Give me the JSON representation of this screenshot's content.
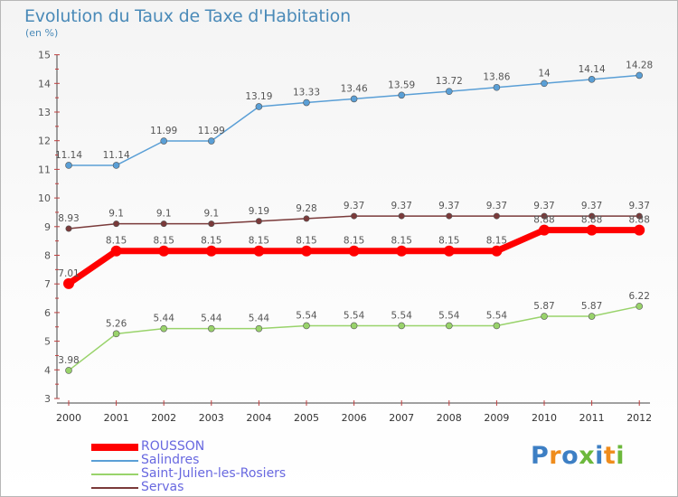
{
  "title": "Evolution du Taux de Taxe d'Habitation",
  "subtitle": "(en %)",
  "logo": {
    "text": "Proxiti",
    "letter_colors": [
      "#3d7fc4",
      "#ef8c1c",
      "#3d7fc4",
      "#6cb83c",
      "#3d7fc4",
      "#ef8c1c",
      "#6cb83c"
    ]
  },
  "chart_data": {
    "type": "line",
    "x": [
      "2000",
      "2001",
      "2002",
      "2003",
      "2004",
      "2005",
      "2006",
      "2007",
      "2008",
      "2009",
      "2010",
      "2011",
      "2012"
    ],
    "ylim": [
      3,
      15
    ],
    "yticks": [
      "3",
      "4",
      "5",
      "6",
      "7",
      "8",
      "9",
      "10",
      "11",
      "12",
      "13",
      "14",
      "15"
    ],
    "grid": false,
    "legend_position": "bottom-left",
    "series": [
      {
        "name": "Salindres",
        "color": "#5a9fd6",
        "values": [
          11.14,
          11.14,
          11.99,
          11.99,
          13.19,
          13.33,
          13.46,
          13.59,
          13.72,
          13.86,
          14,
          14.14,
          14.28
        ],
        "labels": [
          "11.14",
          "11.14",
          "11.99",
          "11.99",
          "13.19",
          "13.33",
          "13.46",
          "13.59",
          "13.72",
          "13.86",
          "14",
          "14.14",
          "14.28"
        ]
      },
      {
        "name": "Servas",
        "color": "#7a3a3a",
        "values": [
          8.93,
          9.1,
          9.1,
          9.1,
          9.19,
          9.28,
          9.37,
          9.37,
          9.37,
          9.37,
          9.37,
          9.37,
          9.37
        ],
        "labels": [
          "8.93",
          "9.1",
          "9.1",
          "9.1",
          "9.19",
          "9.28",
          "9.37",
          "9.37",
          "9.37",
          "9.37",
          "9.37",
          "9.37",
          "9.37"
        ]
      },
      {
        "name": "ROUSSON",
        "color": "#ff0000",
        "values": [
          7.01,
          8.15,
          8.15,
          8.15,
          8.15,
          8.15,
          8.15,
          8.15,
          8.15,
          8.15,
          8.88,
          8.88,
          8.88
        ],
        "labels": [
          "7.01",
          "8.15",
          "8.15",
          "8.15",
          "8.15",
          "8.15",
          "8.15",
          "8.15",
          "8.15",
          "8.15",
          "8.88",
          "8.88",
          "8.88"
        ]
      },
      {
        "name": "Saint-Julien-les-Rosiers",
        "color": "#99d36b",
        "values": [
          3.98,
          5.26,
          5.44,
          5.44,
          5.44,
          5.54,
          5.54,
          5.54,
          5.54,
          5.54,
          5.87,
          5.87,
          6.22
        ],
        "labels": [
          "3.98",
          "5.26",
          "5.44",
          "5.44",
          "5.44",
          "5.54",
          "5.54",
          "5.54",
          "5.54",
          "5.54",
          "5.87",
          "5.87",
          "6.22"
        ]
      }
    ],
    "legend": [
      "ROUSSON",
      "Salindres",
      "Saint-Julien-les-Rosiers",
      "Servas"
    ]
  }
}
